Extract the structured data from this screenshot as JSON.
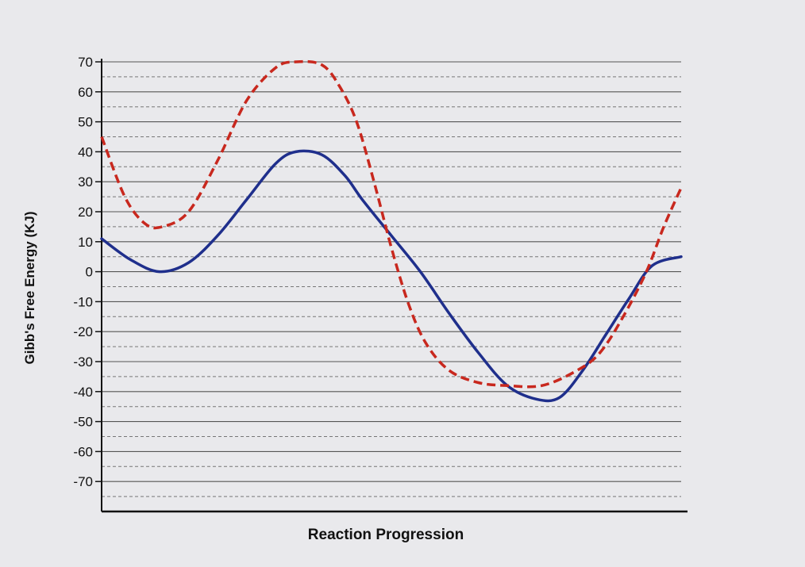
{
  "chart_data": {
    "type": "line",
    "title": "",
    "xlabel": "Reaction Progression",
    "ylabel": "Gibb's Free Energy (KJ)",
    "ylim": [
      -80,
      70
    ],
    "yticks": [
      70,
      60,
      50,
      40,
      30,
      20,
      10,
      0,
      -10,
      -20,
      -30,
      -40,
      -50,
      -60,
      -70
    ],
    "grid": true,
    "legend": "none",
    "x_unit": "relative progress (0-1)",
    "series": [
      {
        "style": "solid",
        "color": "#1f2f8c",
        "x": [
          0.0,
          0.05,
          0.1,
          0.15,
          0.2,
          0.25,
          0.3,
          0.335,
          0.38,
          0.42,
          0.45,
          0.5,
          0.55,
          0.6,
          0.65,
          0.7,
          0.75,
          0.79,
          0.83,
          0.87,
          0.91,
          0.95,
          1.0
        ],
        "y": [
          11,
          4,
          0,
          3,
          12,
          24,
          36,
          40,
          39,
          32,
          24,
          12,
          0,
          -14,
          -27,
          -38,
          -42.5,
          -42,
          -33,
          -21,
          -9,
          2,
          5
        ]
      },
      {
        "style": "dashed",
        "color": "#c8281e",
        "x": [
          0.0,
          0.04,
          0.075,
          0.105,
          0.15,
          0.2,
          0.25,
          0.3,
          0.335,
          0.38,
          0.41,
          0.44,
          0.47,
          0.5,
          0.53,
          0.56,
          0.6,
          0.65,
          0.7,
          0.76,
          0.82,
          0.86,
          0.9,
          0.94,
          0.97,
          1.0
        ],
        "y": [
          45,
          25,
          16,
          15,
          20,
          37,
          57,
          68,
          70,
          69,
          62,
          50,
          30,
          8,
          -11,
          -24,
          -33,
          -37,
          -38,
          -38,
          -33,
          -27,
          -15,
          0,
          15,
          28
        ]
      }
    ]
  }
}
